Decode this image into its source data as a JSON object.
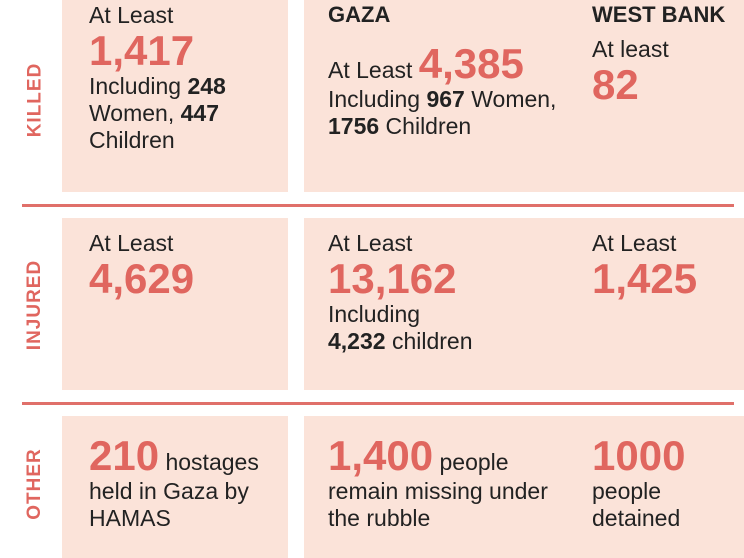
{
  "rows": {
    "killed": "KILLED",
    "injured": "INJURED",
    "other": "OTHER"
  },
  "headers": {
    "gaza": "GAZA",
    "westbank": "WEST BANK"
  },
  "killed": {
    "israel": {
      "prefix": "At Least",
      "number": "1,417",
      "l1a": "Including ",
      "l1b": "248",
      "l2a": "Women, ",
      "l2b": "447",
      "l3": "Children"
    },
    "gaza": {
      "prefix": "At Least ",
      "number": "4,385",
      "l1a": "Including ",
      "l1b": "967",
      "l1c": " Women,",
      "l2b": "1756",
      "l2c": " Children"
    },
    "westbank": {
      "prefix": "At least",
      "number": "82"
    }
  },
  "injured": {
    "israel": {
      "prefix": "At Least",
      "number": "4,629"
    },
    "gaza": {
      "prefix": "At Least",
      "number": "13,162",
      "l1": "Including",
      "l2b": "4,232",
      "l2c": " children"
    },
    "westbank": {
      "prefix": "At Least",
      "number": "1,425"
    }
  },
  "other": {
    "israel": {
      "number": "210",
      "l0": " hostages",
      "l1": "held in Gaza by",
      "l2": "HAMAS"
    },
    "gaza": {
      "number": "1,400",
      "l0": " people",
      "l1": "remain missing under",
      "l2": "the rubble"
    },
    "westbank": {
      "number": "1000",
      "l1": "people",
      "l2": "detained"
    }
  },
  "colors": {
    "accent": "#e0665f",
    "panel": "#fbe3d9",
    "divider": "#e0706a"
  }
}
